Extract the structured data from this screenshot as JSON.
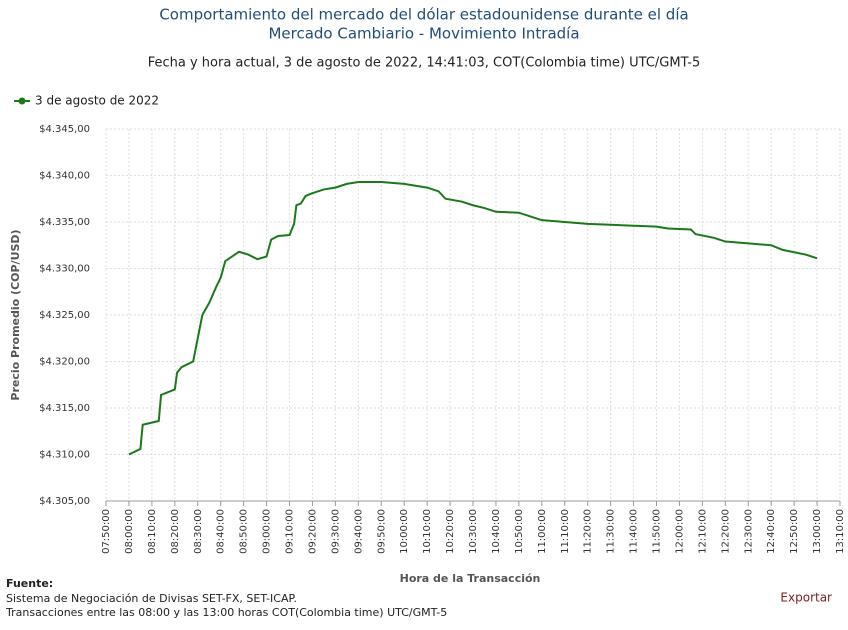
{
  "chart_data": {
    "type": "line",
    "title": "Comportamiento del mercado del dólar estadounidense durante el día",
    "subtitle": "Mercado Cambiario - Movimiento Intradía",
    "date_line": "Fecha y hora actual, 3 de agosto de 2022, 14:41:03, COT(Colombia time) UTC/GMT-5",
    "x_label": "Hora de la Transacción",
    "y_label": "Precio Promedio (COP/USD)",
    "x": [
      "08:00:00",
      "08:05:00",
      "08:06:00",
      "08:13:00",
      "08:14:00",
      "08:20:00",
      "08:21:00",
      "08:23:00",
      "08:28:00",
      "08:30:00",
      "08:32:00",
      "08:35:00",
      "08:38:00",
      "08:40:00",
      "08:42:00",
      "08:45:00",
      "08:48:00",
      "08:52:00",
      "08:56:00",
      "09:00:00",
      "09:02:00",
      "09:05:00",
      "09:10:00",
      "09:12:00",
      "09:13:00",
      "09:15:00",
      "09:17:00",
      "09:20:00",
      "09:25:00",
      "09:30:00",
      "09:35:00",
      "09:40:00",
      "09:50:00",
      "10:00:00",
      "10:05:00",
      "10:10:00",
      "10:15:00",
      "10:18:00",
      "10:25:00",
      "10:30:00",
      "10:35:00",
      "10:40:00",
      "10:50:00",
      "10:55:00",
      "11:00:00",
      "11:10:00",
      "11:20:00",
      "11:30:00",
      "11:40:00",
      "11:50:00",
      "11:55:00",
      "12:05:00",
      "12:07:00",
      "12:15:00",
      "12:20:00",
      "12:30:00",
      "12:40:00",
      "12:45:00",
      "12:55:00",
      "13:00:00"
    ],
    "series": [
      {
        "name": "3 de agosto de 2022",
        "color": "#1a7a1a",
        "values": [
          4310.0,
          4310.6,
          4313.2,
          4313.6,
          4316.4,
          4317.0,
          4318.8,
          4319.4,
          4320.0,
          4322.5,
          4325.0,
          4326.3,
          4328.0,
          4329.0,
          4330.8,
          4331.3,
          4331.8,
          4331.5,
          4331.0,
          4331.3,
          4333.1,
          4333.5,
          4333.6,
          4334.8,
          4336.8,
          4337.0,
          4337.8,
          4338.1,
          4338.5,
          4338.7,
          4339.1,
          4339.3,
          4339.3,
          4339.1,
          4338.9,
          4338.7,
          4338.3,
          4337.5,
          4337.2,
          4336.8,
          4336.5,
          4336.1,
          4336.0,
          4335.6,
          4335.2,
          4335.0,
          4334.8,
          4334.7,
          4334.6,
          4334.5,
          4334.3,
          4334.2,
          4333.7,
          4333.3,
          4332.9,
          4332.7,
          4332.5,
          4332.0,
          4331.5,
          4331.1
        ]
      }
    ],
    "xlim": [
      "07:50:00",
      "13:10:00"
    ],
    "xticks": [
      "07:50:00",
      "08:00:00",
      "08:10:00",
      "08:20:00",
      "08:30:00",
      "08:40:00",
      "08:50:00",
      "09:00:00",
      "09:10:00",
      "09:20:00",
      "09:30:00",
      "09:40:00",
      "09:50:00",
      "10:00:00",
      "10:10:00",
      "10:20:00",
      "10:30:00",
      "10:40:00",
      "10:50:00",
      "11:00:00",
      "11:10:00",
      "11:20:00",
      "11:30:00",
      "11:40:00",
      "11:50:00",
      "12:00:00",
      "12:10:00",
      "12:20:00",
      "12:30:00",
      "12:40:00",
      "12:50:00",
      "13:00:00",
      "13:10:00"
    ],
    "ylim": [
      4305,
      4345
    ],
    "yticks": [
      {
        "value": 4305,
        "label": "$4.305,00"
      },
      {
        "value": 4310,
        "label": "$4.310,00"
      },
      {
        "value": 4315,
        "label": "$4.315,00"
      },
      {
        "value": 4320,
        "label": "$4.320,00"
      },
      {
        "value": 4325,
        "label": "$4.325,00"
      },
      {
        "value": 4330,
        "label": "$4.330,00"
      },
      {
        "value": 4335,
        "label": "$4.335,00"
      },
      {
        "value": 4340,
        "label": "$4.340,00"
      },
      {
        "value": 4345,
        "label": "$4.345,00"
      }
    ],
    "grid": true
  },
  "footer": {
    "heading": "Fuente:",
    "lines": [
      "Sistema de Negociación de Divisas SET-FX, SET-ICAP.",
      "Transacciones entre las 08:00 y las 13:00 horas COT(Colombia time) UTC/GMT-5"
    ],
    "export": "Exportar"
  }
}
